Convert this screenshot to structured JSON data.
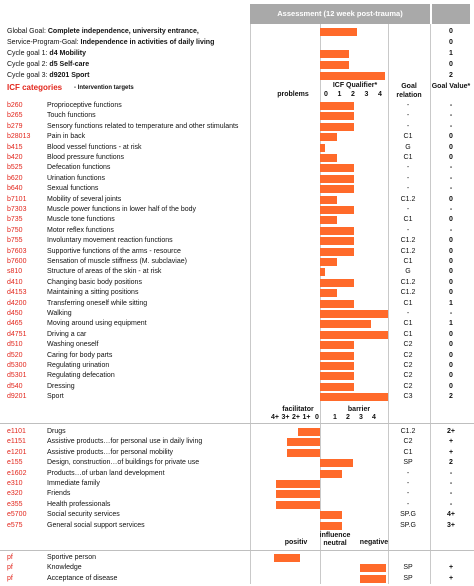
{
  "assessment_header": "Assessment (12 week post-trauma)",
  "goals": [
    {
      "prefix": "Global Goal:",
      "text": "Complete independence, university entrance,",
      "value": "0",
      "bar": 0.55
    },
    {
      "prefix": "Service-Program-Goal:",
      "text": "Independence in activities of daily living",
      "value": "0",
      "bar": 0.0
    },
    {
      "prefix": "Cycle goal 1:",
      "text": "d4 Mobility",
      "value": "1",
      "bar": 0.43
    },
    {
      "prefix": "Cycle goal 2:",
      "text": "d5 Self-care",
      "value": "0",
      "bar": 0.43
    },
    {
      "prefix": "Cycle goal 3:",
      "text": "d9201 Sport",
      "value": "2",
      "bar": 0.95
    }
  ],
  "header": {
    "icf_categories": "ICF categories",
    "intervention_targets": "- Intervention targets",
    "problems": "problems",
    "qualifier": "ICF Qualifier*",
    "scale": [
      "0",
      "1",
      "2",
      "3",
      "4"
    ],
    "goal_relation": "Goal relation",
    "goal_value": "Goal Value*"
  },
  "body_rows": [
    {
      "code": "b260",
      "label": "Proprioceptive functions",
      "qual": 2,
      "rel": "-",
      "val": "-"
    },
    {
      "code": "b265",
      "label": "Touch functions",
      "qual": 2,
      "rel": "-",
      "val": "-"
    },
    {
      "code": "b279",
      "label": "Sensory functions related to temperature and other stimulants",
      "qual": 2,
      "rel": "-",
      "val": "-"
    },
    {
      "code": "b28013",
      "label": "Pain in back",
      "qual": 1,
      "rel": "C1",
      "val": "0"
    },
    {
      "code": "b415",
      "label": "Blood vessel functions - at risk",
      "qual": 0.3,
      "rel": "G",
      "val": "0"
    },
    {
      "code": "b420",
      "label": "Blood pressure functions",
      "qual": 1,
      "rel": "C1",
      "val": "0"
    },
    {
      "code": "b525",
      "label": "Defecation functions",
      "qual": 2,
      "rel": "-",
      "val": "-"
    },
    {
      "code": "b620",
      "label": "Urination functions",
      "qual": 2,
      "rel": "-",
      "val": "-"
    },
    {
      "code": "b640",
      "label": "Sexual functions",
      "qual": 2,
      "rel": "-",
      "val": "-"
    },
    {
      "code": "b7101",
      "label": "Mobility of several joints",
      "qual": 1,
      "rel": "C1.2",
      "val": "0"
    },
    {
      "code": "b7303",
      "label": "Muscle power functions in lower half of the body",
      "qual": 2,
      "rel": "-",
      "val": "-"
    },
    {
      "code": "b735",
      "label": "Muscle tone functions",
      "qual": 1,
      "rel": "C1",
      "val": "0"
    },
    {
      "code": "b750",
      "label": "Motor reflex functions",
      "qual": 2,
      "rel": "-",
      "val": "-"
    },
    {
      "code": "b755",
      "label": "Involuntary movement reaction functions",
      "qual": 2,
      "rel": "C1.2",
      "val": "0"
    },
    {
      "code": "b7603",
      "label": "Supportive functions of the arms - resource",
      "qual": 2,
      "rel": "C1.2",
      "val": "0"
    },
    {
      "code": "b7600",
      "label": "Sensation of muscle stiffness (M. subclaviae)",
      "qual": 1,
      "rel": "C1",
      "val": "0"
    },
    {
      "code": "s810",
      "label": "Structure of areas of the skin - at risk",
      "qual": 0.3,
      "rel": "G",
      "val": "0"
    },
    {
      "code": "d410",
      "label": "Changing basic body positions",
      "qual": 2,
      "rel": "C1.2",
      "val": "0"
    },
    {
      "code": "d4153",
      "label": "Maintaining a sitting positions",
      "qual": 1,
      "rel": "C1.2",
      "val": "0"
    },
    {
      "code": "d4200",
      "label": "Transferring oneself while sitting",
      "qual": 2,
      "rel": "C1",
      "val": "1"
    },
    {
      "code": "d450",
      "label": "Walking",
      "qual": 4,
      "rel": "-",
      "val": "-"
    },
    {
      "code": "d465",
      "label": "Moving around using equipment",
      "qual": 3,
      "rel": "C1",
      "val": "1"
    },
    {
      "code": "d4751",
      "label": "Driving a car",
      "qual": 4,
      "rel": "C1",
      "val": "0"
    },
    {
      "code": "d510",
      "label": "Washing oneself",
      "qual": 2,
      "rel": "C2",
      "val": "0"
    },
    {
      "code": "d520",
      "label": "Caring for body parts",
      "qual": 2,
      "rel": "C2",
      "val": "0"
    },
    {
      "code": "d5300",
      "label": "Regulating urination",
      "qual": 2,
      "rel": "C2",
      "val": "0"
    },
    {
      "code": "d5301",
      "label": "Regulating defecation",
      "qual": 2,
      "rel": "C2",
      "val": "0"
    },
    {
      "code": "d540",
      "label": "Dressing",
      "qual": 2,
      "rel": "C2",
      "val": "0"
    },
    {
      "code": "d9201",
      "label": "Sport",
      "qual": 4,
      "rel": "C3",
      "val": "2"
    }
  ],
  "env_header": {
    "facilitator": "facilitator",
    "barrier": "barrier",
    "facilitator_scale": [
      "4+",
      "3+",
      "2+",
      "1+",
      "0"
    ],
    "barrier_scale": [
      "1",
      "2",
      "3",
      "4"
    ]
  },
  "env_rows": [
    {
      "code": "e1101",
      "label": "Drugs",
      "side": "fac",
      "mag": 2,
      "rel": "C1.2",
      "val": "2+"
    },
    {
      "code": "e1151",
      "label": "Assistive products…for personal use in daily living",
      "side": "fac",
      "mag": 3,
      "rel": "C2",
      "val": "+"
    },
    {
      "code": "e1201",
      "label": "Assistive products…for personal mobility",
      "side": "fac",
      "mag": 3,
      "rel": "C1",
      "val": "+"
    },
    {
      "code": "e155",
      "label": "Design, construction…of buildings for private use",
      "side": "bar",
      "mag": 3,
      "rel": "SP",
      "val": "2"
    },
    {
      "code": "e1602",
      "label": "Products…of urban land development",
      "side": "bar",
      "mag": 2,
      "rel": "-",
      "val": "-"
    },
    {
      "code": "e310",
      "label": "Immediate family",
      "side": "fac",
      "mag": 4,
      "rel": "-",
      "val": "-"
    },
    {
      "code": "e320",
      "label": "Friends",
      "side": "fac",
      "mag": 4,
      "rel": "-",
      "val": "-"
    },
    {
      "code": "e355",
      "label": "Health professionals",
      "side": "fac",
      "mag": 4,
      "rel": "-",
      "val": "-"
    },
    {
      "code": "e5700",
      "label": "Social security services",
      "side": "bar",
      "mag": 2,
      "rel": "SP.G",
      "val": "4+"
    },
    {
      "code": "e575",
      "label": "General social support services",
      "side": "bar",
      "mag": 2,
      "rel": "SP.G",
      "val": "3+"
    }
  ],
  "pf_header": {
    "positive": "positiv",
    "influence": "influence",
    "neutral": "neutral",
    "negative": "negative"
  },
  "pf_rows": [
    {
      "code": "pf",
      "label": "Sportive person",
      "side": "pos",
      "rel": "",
      "val": ""
    },
    {
      "code": "pf",
      "label": "Knowledge",
      "side": "neg",
      "rel": "SP",
      "val": "+"
    },
    {
      "code": "pf",
      "label": "Acceptance of disease",
      "side": "neg",
      "rel": "SP",
      "val": "+"
    }
  ],
  "colors": {
    "bar": "#ff6a2a",
    "code": "#e2261c",
    "header": "#a9a9a9"
  }
}
